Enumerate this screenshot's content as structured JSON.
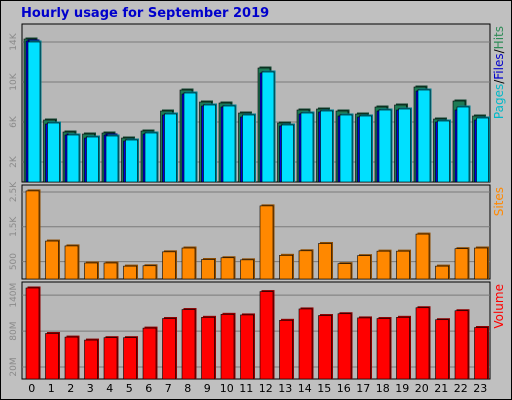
{
  "chart_data": [
    {
      "type": "bar",
      "title": "Hourly usage for September 2019",
      "categories": [
        "0",
        "1",
        "2",
        "3",
        "4",
        "5",
        "6",
        "7",
        "8",
        "9",
        "10",
        "11",
        "12",
        "13",
        "14",
        "15",
        "16",
        "17",
        "18",
        "19",
        "20",
        "21",
        "22",
        "23"
      ],
      "yticks": [
        "2K",
        "6K",
        "10K",
        "14K"
      ],
      "ylim": [
        0,
        15800
      ],
      "legend": [
        {
          "text": "Pages",
          "color": "#00b8c8"
        },
        {
          "text": "/",
          "color": "#000000"
        },
        {
          "text": "Files",
          "color": "#0000cc"
        },
        {
          "text": "/",
          "color": "#000000"
        },
        {
          "text": "Hits",
          "color": "#2e8b57"
        }
      ],
      "series": [
        {
          "name": "Hits",
          "color": "#1e7b55",
          "values": [
            14300,
            6200,
            5000,
            4800,
            4900,
            4400,
            5100,
            7100,
            9200,
            8000,
            7900,
            6900,
            11400,
            5900,
            7200,
            7300,
            7100,
            6800,
            7500,
            7700,
            9500,
            6300,
            8100,
            6600
          ]
        },
        {
          "name": "Files",
          "color": "#0000dd",
          "values": [
            14100,
            5800,
            4700,
            4400,
            4700,
            4100,
            4800,
            6700,
            8800,
            7600,
            7500,
            6500,
            10900,
            5600,
            6800,
            7000,
            6600,
            6500,
            7100,
            7200,
            9100,
            6000,
            7200,
            6200
          ]
        },
        {
          "name": "Pages",
          "color": "#00e0ff",
          "values": [
            14000,
            5900,
            4700,
            4500,
            4600,
            4200,
            4900,
            6800,
            8900,
            7700,
            7600,
            6700,
            11000,
            5700,
            6900,
            7100,
            6700,
            6600,
            7200,
            7300,
            9200,
            6100,
            7500,
            6400
          ]
        }
      ]
    },
    {
      "type": "bar",
      "categories": [
        "0",
        "1",
        "2",
        "3",
        "4",
        "5",
        "6",
        "7",
        "8",
        "9",
        "10",
        "11",
        "12",
        "13",
        "14",
        "15",
        "16",
        "17",
        "18",
        "19",
        "20",
        "21",
        "22",
        "23"
      ],
      "yticks": [
        "500",
        "1.5K",
        "2.5K"
      ],
      "ylim": [
        0,
        2700
      ],
      "legend": [
        {
          "text": "Sites",
          "color": "#ff8800"
        }
      ],
      "series": [
        {
          "name": "Sites",
          "color": "#ff8800",
          "values": [
            2530,
            1090,
            950,
            460,
            460,
            370,
            380,
            780,
            890,
            560,
            610,
            550,
            2100,
            680,
            810,
            1020,
            440,
            670,
            800,
            800,
            1290,
            370,
            870,
            890
          ]
        }
      ]
    },
    {
      "type": "bar",
      "categories": [
        "0",
        "1",
        "2",
        "3",
        "4",
        "5",
        "6",
        "7",
        "8",
        "9",
        "10",
        "11",
        "12",
        "13",
        "14",
        "15",
        "16",
        "17",
        "18",
        "19",
        "20",
        "21",
        "22",
        "23"
      ],
      "yticks": [
        "20M",
        "80M",
        "140M"
      ],
      "ylim": [
        0,
        162
      ],
      "legend": [
        {
          "text": "Volume",
          "color": "#ff0000"
        }
      ],
      "series": [
        {
          "name": "Volume",
          "color": "#ff0000",
          "values": [
            152,
            76,
            70,
            65,
            69,
            69,
            85,
            101,
            116,
            103,
            108,
            107,
            146,
            98,
            117,
            106,
            109,
            102,
            101,
            103,
            119,
            99,
            114,
            86
          ]
        }
      ]
    }
  ]
}
